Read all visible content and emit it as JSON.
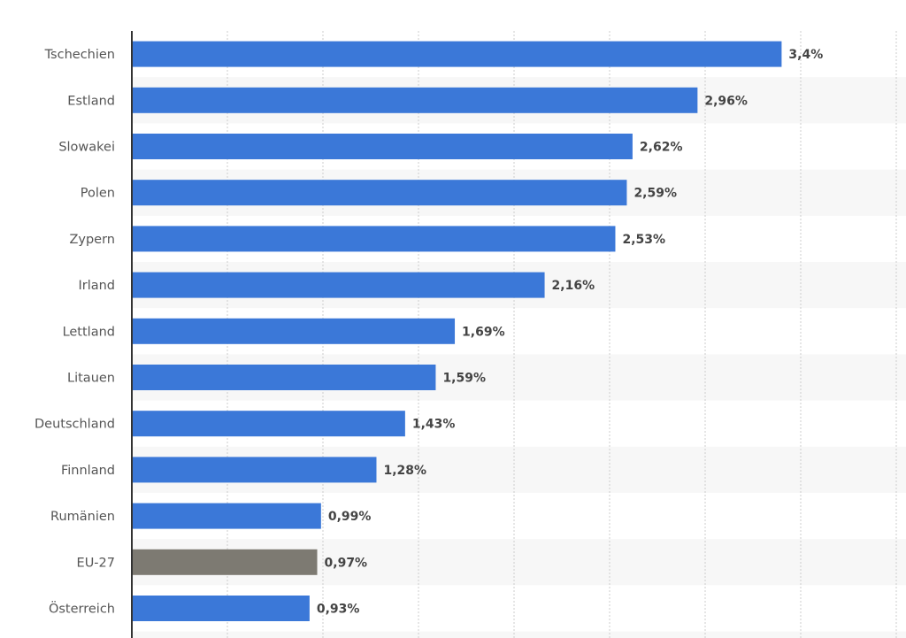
{
  "chart_data": {
    "type": "bar",
    "orientation": "horizontal",
    "categories": [
      "Tschechien",
      "Estland",
      "Slowakei",
      "Polen",
      "Zypern",
      "Irland",
      "Lettland",
      "Litauen",
      "Deutschland",
      "Finnland",
      "Rumänien",
      "EU-27",
      "Österreich"
    ],
    "values": [
      3.4,
      2.96,
      2.62,
      2.59,
      2.53,
      2.16,
      1.69,
      1.59,
      1.43,
      1.28,
      0.99,
      0.97,
      0.93
    ],
    "value_labels": [
      "3,4%",
      "2,96%",
      "2,62%",
      "2,59%",
      "2,53%",
      "2,16%",
      "1,69%",
      "1,59%",
      "1,43%",
      "1,28%",
      "0,99%",
      "0,97%",
      "0,93%"
    ],
    "highlight": "EU-27",
    "xlim": [
      0,
      4
    ],
    "grid_step": 0.5,
    "grid": true,
    "colors": {
      "bar": "#3b78d8",
      "highlight": "#7d7a72",
      "band": "#f7f7f7",
      "grid": "#cccccc",
      "axis": "#333333"
    }
  }
}
